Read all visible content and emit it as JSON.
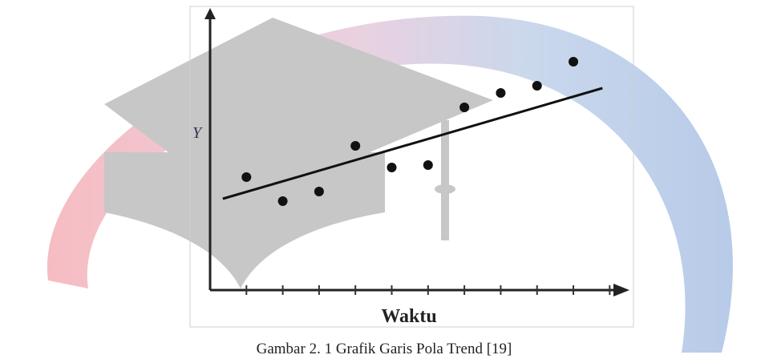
{
  "chart_data": {
    "type": "scatter",
    "y_label": "Y",
    "x_label": "Waktu",
    "caption": "Gambar 2. 1 Grafik Garis Pola Trend [19]",
    "x": [
      1,
      2,
      3,
      4,
      5,
      6,
      7,
      8,
      9,
      10
    ],
    "values": [
      4.7,
      3.7,
      4.1,
      6.0,
      5.1,
      5.2,
      7.6,
      8.2,
      8.5,
      9.5
    ],
    "color": "#111111",
    "trendline": {
      "x": [
        0.35,
        10.8
      ],
      "y": [
        3.8,
        8.4
      ],
      "color": "#111111"
    },
    "xlim": [
      0,
      11.5
    ],
    "ylim": [
      0,
      11.4
    ],
    "xticks": [
      1,
      2,
      3,
      4,
      5,
      6,
      7,
      8,
      9,
      10,
      11
    ]
  }
}
